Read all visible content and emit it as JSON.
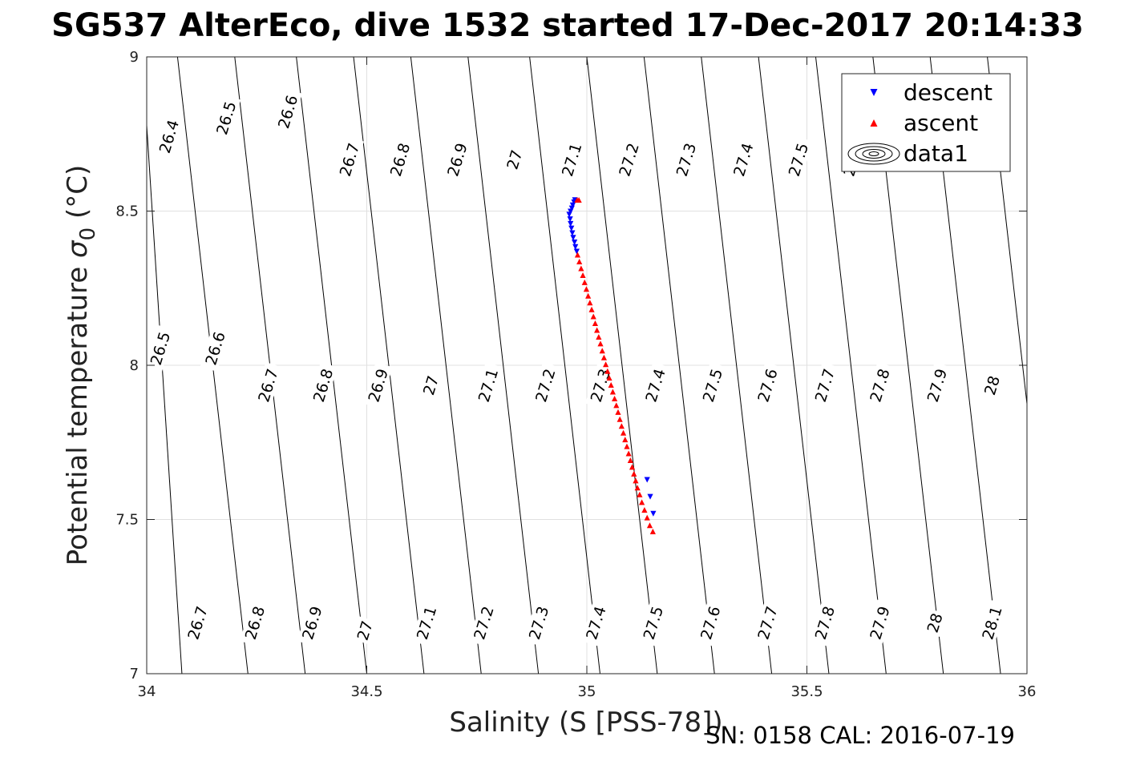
{
  "chart_data": {
    "type": "scatter",
    "title": "SG537 AlterEco, dive 1532 started 17-Dec-2017 20:14:33",
    "xlabel": "Salinity (S [PSS-78])",
    "ylabel_main": "Potential temperature ",
    "ylabel_sigma": "σ",
    "ylabel_sub": "0",
    "ylabel_unit": " (°C)",
    "xlim": [
      34,
      36
    ],
    "ylim": [
      7,
      9
    ],
    "xticks": [
      34,
      34.5,
      35,
      35.5,
      36
    ],
    "xtick_labels": [
      "34",
      "34.5",
      "35",
      "35.5",
      "36"
    ],
    "yticks": [
      7,
      7.5,
      8,
      8.5,
      9
    ],
    "ytick_labels": [
      "7",
      "7.5",
      "8",
      "8.5",
      "9"
    ],
    "grid": true,
    "legend_position": "top-right",
    "legend": [
      "descent",
      "ascent",
      "data1"
    ],
    "series": [
      {
        "name": "descent",
        "marker": "triangle-down",
        "color": "#0000ff",
        "points": [
          [
            34.973,
            8.537
          ],
          [
            34.971,
            8.53
          ],
          [
            34.968,
            8.52
          ],
          [
            34.966,
            8.51
          ],
          [
            34.963,
            8.5
          ],
          [
            34.96,
            8.49
          ],
          [
            34.962,
            8.475
          ],
          [
            34.963,
            8.46
          ],
          [
            34.965,
            8.445
          ],
          [
            34.967,
            8.43
          ],
          [
            34.969,
            8.415
          ],
          [
            34.972,
            8.4
          ],
          [
            34.974,
            8.385
          ],
          [
            34.977,
            8.37
          ],
          [
            35.137,
            7.63
          ],
          [
            35.144,
            7.575
          ],
          [
            35.151,
            7.52
          ]
        ]
      },
      {
        "name": "ascent",
        "marker": "triangle-up",
        "color": "#ff0000",
        "points": [
          [
            34.978,
            8.535
          ],
          [
            34.982,
            8.535
          ],
          [
            34.979,
            8.357
          ],
          [
            34.983,
            8.335
          ],
          [
            34.987,
            8.313
          ],
          [
            34.991,
            8.291
          ],
          [
            34.995,
            8.268
          ],
          [
            34.999,
            8.246
          ],
          [
            35.003,
            8.224
          ],
          [
            35.007,
            8.202
          ],
          [
            35.011,
            8.18
          ],
          [
            35.015,
            8.157
          ],
          [
            35.019,
            8.135
          ],
          [
            35.023,
            8.113
          ],
          [
            35.027,
            8.091
          ],
          [
            35.031,
            8.069
          ],
          [
            35.035,
            8.046
          ],
          [
            35.039,
            8.024
          ],
          [
            35.043,
            8.002
          ],
          [
            35.047,
            7.98
          ],
          [
            35.051,
            7.958
          ],
          [
            35.055,
            7.935
          ],
          [
            35.059,
            7.913
          ],
          [
            35.063,
            7.891
          ],
          [
            35.067,
            7.869
          ],
          [
            35.071,
            7.847
          ],
          [
            35.075,
            7.824
          ],
          [
            35.079,
            7.802
          ],
          [
            35.083,
            7.78
          ],
          [
            35.087,
            7.758
          ],
          [
            35.091,
            7.736
          ],
          [
            35.095,
            7.713
          ],
          [
            35.099,
            7.691
          ],
          [
            35.103,
            7.669
          ],
          [
            35.107,
            7.647
          ],
          [
            35.111,
            7.625
          ],
          [
            35.115,
            7.602
          ],
          [
            35.12,
            7.58
          ],
          [
            35.125,
            7.555
          ],
          [
            35.131,
            7.53
          ],
          [
            35.137,
            7.505
          ],
          [
            35.143,
            7.48
          ],
          [
            35.15,
            7.46
          ]
        ]
      }
    ],
    "contours": {
      "name": "data1",
      "lines": [
        {
          "x7": 34.08,
          "x9": 33.99,
          "labels": [
            {
              "x": 34.115,
              "y": 7.165,
              "text": "26.7"
            }
          ]
        },
        {
          "x7": 34.23,
          "x9": 34.07,
          "labels": [
            {
              "x": 34.245,
              "y": 7.165,
              "text": "26.8"
            },
            {
              "x": 34.05,
              "y": 8.742,
              "text": "26.4"
            }
          ]
        },
        {
          "x7": 34.36,
          "x9": 34.2,
          "labels": [
            {
              "x": 34.375,
              "y": 7.165,
              "text": "26.9"
            },
            {
              "x": 34.18,
              "y": 8.802,
              "text": "26.5"
            }
          ]
        },
        {
          "x7": 34.5,
          "x9": 34.34,
          "labels": [
            {
              "x": 34.495,
              "y": 7.14,
              "text": "27"
            },
            {
              "x": 34.32,
              "y": 8.822,
              "text": "26.6"
            }
          ]
        },
        {
          "x7": 34.63,
          "x9": 34.47,
          "labels": [
            {
              "x": 34.635,
              "y": 7.165,
              "text": "27.1"
            },
            {
              "x": 34.46,
              "y": 8.667,
              "text": "26.7"
            }
          ]
        },
        {
          "x7": 34.76,
          "x9": 34.6,
          "labels": [
            {
              "x": 34.765,
              "y": 7.165,
              "text": "27.2"
            },
            {
              "x": 34.575,
              "y": 8.667,
              "text": "26.8"
            }
          ]
        },
        {
          "x7": 34.89,
          "x9": 34.73,
          "labels": [
            {
              "x": 34.89,
              "y": 7.165,
              "text": "27.3"
            },
            {
              "x": 34.705,
              "y": 8.667,
              "text": "26.9"
            }
          ]
        },
        {
          "x7": 35.03,
          "x9": 34.87,
          "labels": [
            {
              "x": 35.02,
              "y": 7.165,
              "text": "27.4"
            },
            {
              "x": 34.835,
              "y": 8.667,
              "text": "27"
            }
          ]
        },
        {
          "x7": 35.16,
          "x9": 35.0,
          "labels": [
            {
              "x": 35.15,
              "y": 7.165,
              "text": "27.5"
            },
            {
              "x": 34.965,
              "y": 8.667,
              "text": "27.1"
            }
          ]
        },
        {
          "x7": 35.29,
          "x9": 35.13,
          "labels": [
            {
              "x": 35.28,
              "y": 7.165,
              "text": "27.6"
            },
            {
              "x": 35.095,
              "y": 8.667,
              "text": "27.2"
            }
          ]
        },
        {
          "x7": 35.42,
          "x9": 35.26,
          "labels": [
            {
              "x": 35.41,
              "y": 7.165,
              "text": "27.7"
            },
            {
              "x": 35.225,
              "y": 8.667,
              "text": "27.3"
            }
          ]
        },
        {
          "x7": 35.55,
          "x9": 35.39,
          "labels": [
            {
              "x": 35.54,
              "y": 7.165,
              "text": "27.8"
            },
            {
              "x": 35.355,
              "y": 8.667,
              "text": "27.4"
            }
          ]
        },
        {
          "x7": 35.68,
          "x9": 35.52,
          "labels": [
            {
              "x": 35.665,
              "y": 7.165,
              "text": "27.9"
            },
            {
              "x": 35.48,
              "y": 8.667,
              "text": "27.5"
            }
          ]
        },
        {
          "x7": 35.81,
          "x9": 35.65,
          "labels": [
            {
              "x": 35.79,
              "y": 7.165,
              "text": "28"
            },
            {
              "x": 35.605,
              "y": 8.667,
              "text": "27.6"
            }
          ]
        },
        {
          "x7": 35.94,
          "x9": 35.78,
          "labels": [
            {
              "x": 35.92,
              "y": 7.165,
              "text": "28.1"
            }
          ]
        },
        {
          "x7": 36.07,
          "x9": 35.91,
          "labels": []
        },
        {
          "x7": 36.2,
          "x9": 36.04,
          "labels": []
        }
      ],
      "mid_labels": [
        {
          "x": 34.03,
          "y": 8.055,
          "text": "26.5"
        },
        {
          "x": 34.155,
          "y": 8.055,
          "text": "26.6"
        },
        {
          "x": 34.275,
          "y": 7.935,
          "text": "26.7"
        },
        {
          "x": 34.4,
          "y": 7.935,
          "text": "26.8"
        },
        {
          "x": 34.525,
          "y": 7.935,
          "text": "26.9"
        },
        {
          "x": 34.645,
          "y": 7.935,
          "text": "27"
        },
        {
          "x": 34.775,
          "y": 7.935,
          "text": "27.1"
        },
        {
          "x": 34.905,
          "y": 7.935,
          "text": "27.2"
        },
        {
          "x": 35.03,
          "y": 7.935,
          "text": "27.3"
        },
        {
          "x": 35.155,
          "y": 7.935,
          "text": "27.4"
        },
        {
          "x": 35.285,
          "y": 7.935,
          "text": "27.5"
        },
        {
          "x": 35.41,
          "y": 7.935,
          "text": "27.6"
        },
        {
          "x": 35.54,
          "y": 7.935,
          "text": "27.7"
        },
        {
          "x": 35.665,
          "y": 7.935,
          "text": "27.8"
        },
        {
          "x": 35.795,
          "y": 7.935,
          "text": "27.9"
        },
        {
          "x": 35.92,
          "y": 7.935,
          "text": "28"
        }
      ]
    }
  },
  "footer": {
    "calibration": "SN: 0158  CAL: 2016-07-19"
  }
}
